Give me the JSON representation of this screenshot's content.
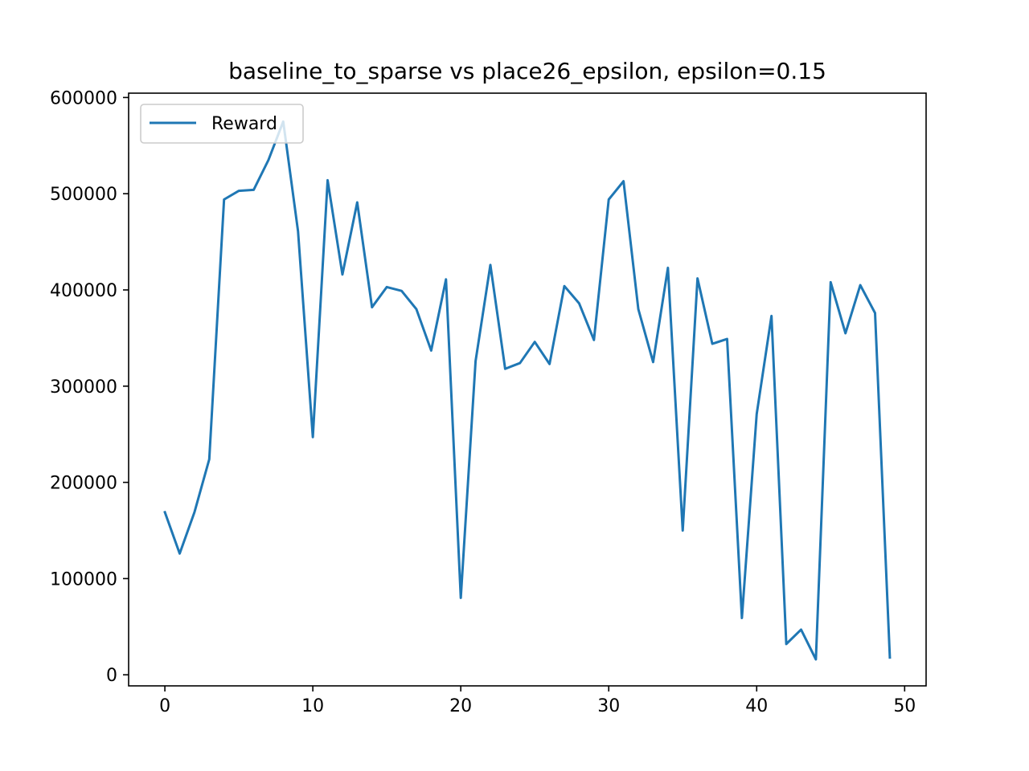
{
  "chart_data": {
    "type": "line",
    "title": "baseline_to_sparse vs place26_epsilon, epsilon=0.15",
    "xlabel": "",
    "ylabel": "",
    "xlim": [
      -2.45,
      51.45
    ],
    "ylim": [
      -11500,
      604500
    ],
    "x_ticks": [
      0,
      10,
      20,
      30,
      40,
      50
    ],
    "y_ticks": [
      0,
      100000,
      200000,
      300000,
      400000,
      500000,
      600000
    ],
    "x_tick_labels": [
      "0",
      "10",
      "20",
      "30",
      "40",
      "50"
    ],
    "y_tick_labels": [
      "0",
      "100000",
      "200000",
      "300000",
      "400000",
      "500000",
      "600000"
    ],
    "grid": false,
    "legend_position": "upper left",
    "series": [
      {
        "name": "Reward",
        "color": "#1f77b4",
        "x": [
          0,
          1,
          2,
          3,
          4,
          5,
          6,
          7,
          8,
          9,
          10,
          11,
          12,
          13,
          14,
          15,
          16,
          17,
          18,
          19,
          20,
          21,
          22,
          23,
          24,
          25,
          26,
          27,
          28,
          29,
          30,
          31,
          32,
          33,
          34,
          35,
          36,
          37,
          38,
          39,
          40,
          41,
          42,
          43,
          44,
          45,
          46,
          47,
          48,
          49
        ],
        "values": [
          169000,
          126000,
          169000,
          224000,
          494000,
          503000,
          504000,
          535000,
          575000,
          461000,
          247000,
          514000,
          416000,
          491000,
          382000,
          403000,
          399000,
          380000,
          337000,
          411000,
          80000,
          326000,
          426000,
          318000,
          324000,
          346000,
          323000,
          404000,
          386000,
          348000,
          494000,
          513000,
          380000,
          325000,
          423000,
          150000,
          412000,
          344000,
          349000,
          59000,
          271000,
          373000,
          32000,
          47000,
          16000,
          408000,
          355000,
          405000,
          376000,
          18000
        ]
      }
    ]
  }
}
